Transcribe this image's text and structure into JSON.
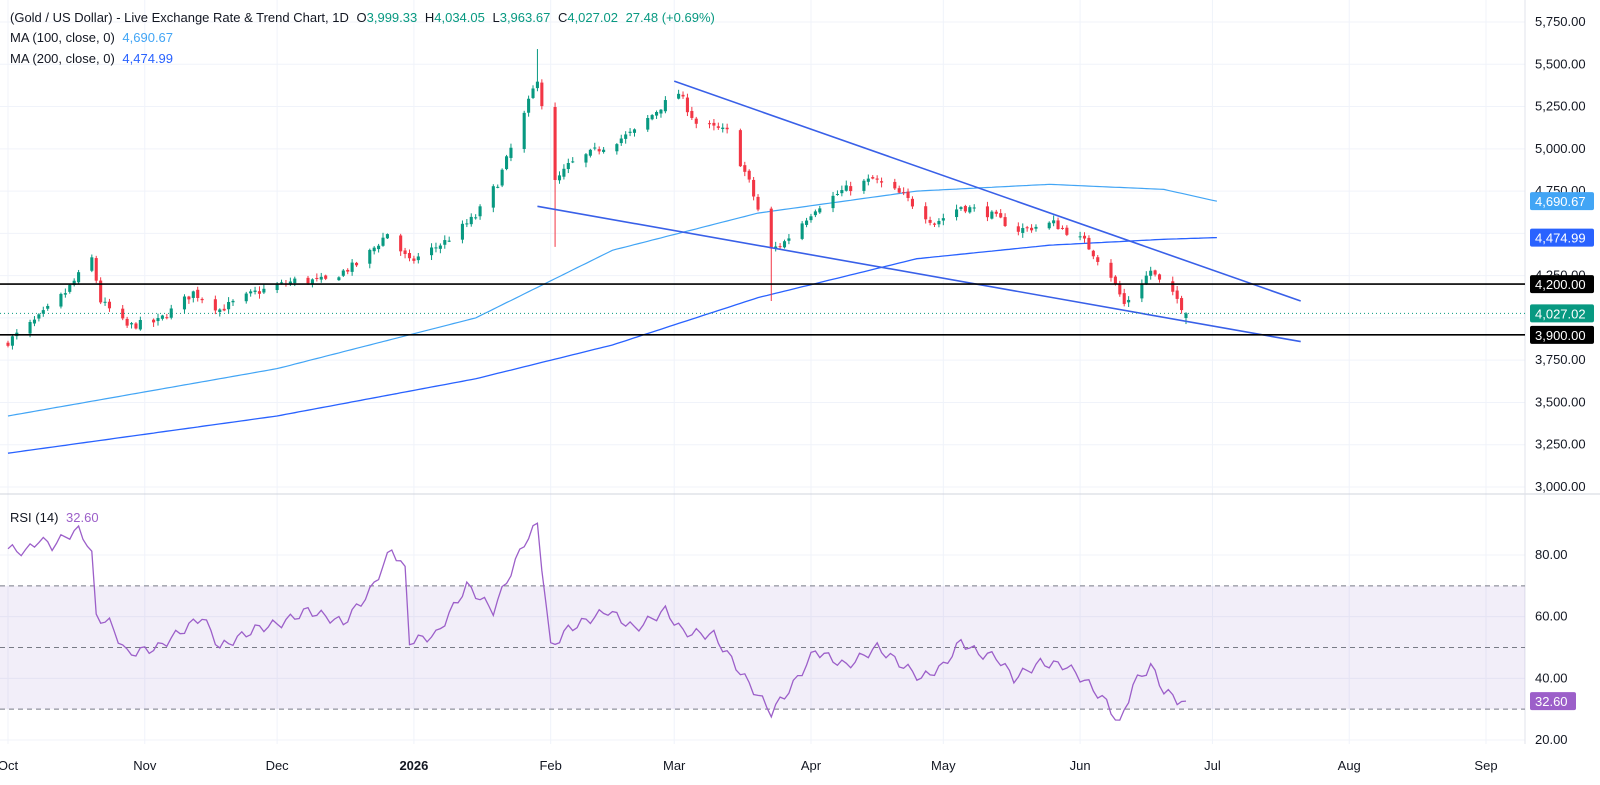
{
  "header": {
    "title": "(Gold / US Dollar) - Live Exchange Rate & Trend Chart, 1D",
    "o_label": "O",
    "o_value": "3,999.33",
    "h_label": "H",
    "h_value": "4,034.05",
    "l_label": "L",
    "l_value": "3,963.67",
    "c_label": "C",
    "c_value": "4,027.02",
    "change": "27.48 (+0.69%)"
  },
  "indicators": {
    "ma100_label": "MA (100, close, 0)",
    "ma100_value": "4,690.67",
    "ma200_label": "MA (200, close, 0)",
    "ma200_value": "4,474.99",
    "rsi_label": "RSI (14)",
    "rsi_value": "32.60"
  },
  "colors": {
    "up": "#089981",
    "down": "#f23645",
    "ma100": "#42a5f5",
    "ma200": "#2962ff",
    "trendline": "#3960e8",
    "rsi": "#9c5fc9",
    "rsi_band": "#7e57c2"
  },
  "chart_data": [
    {
      "type": "candlestick",
      "title": "(Gold / US Dollar) - Live Exchange Rate & Trend Chart, 1D",
      "ylim": [
        3000,
        5750
      ],
      "y_ticks": [
        "5,750.00",
        "5,500.00",
        "5,250.00",
        "5,000.00",
        "4,750.00",
        "4,250.00",
        "3,750.00",
        "3,500.00",
        "3,250.00",
        "3,000.00"
      ],
      "x_ticks": [
        "Oct",
        "Nov",
        "Dec",
        "2026",
        "Feb",
        "Mar",
        "Apr",
        "May",
        "Jun",
        "Jul",
        "Aug",
        "Sep"
      ],
      "waypoints": [
        [
          "2025-10-01",
          3860
        ],
        [
          "2025-10-08",
          4000
        ],
        [
          "2025-10-14",
          4150
        ],
        [
          "2025-10-20",
          4350
        ],
        [
          "2025-10-22",
          4100
        ],
        [
          "2025-10-28",
          3950
        ],
        [
          "2025-11-04",
          3980
        ],
        [
          "2025-11-12",
          4150
        ],
        [
          "2025-11-18",
          4050
        ],
        [
          "2025-11-26",
          4150
        ],
        [
          "2025-12-05",
          4220
        ],
        [
          "2025-12-12",
          4220
        ],
        [
          "2025-12-20",
          4330
        ],
        [
          "2025-12-26",
          4500
        ],
        [
          "2025-12-31",
          4330
        ],
        [
          "2026-01-08",
          4450
        ],
        [
          "2026-01-15",
          4600
        ],
        [
          "2026-01-20",
          4800
        ],
        [
          "2026-01-26",
          5200
        ],
        [
          "2026-01-29",
          5420
        ],
        [
          "2026-02-02",
          4800
        ],
        [
          "2026-02-05",
          4900
        ],
        [
          "2026-02-12",
          5000
        ],
        [
          "2026-02-20",
          5100
        ],
        [
          "2026-02-26",
          5250
        ],
        [
          "2026-03-02",
          5330
        ],
        [
          "2026-03-06",
          5150
        ],
        [
          "2026-03-13",
          5100
        ],
        [
          "2026-03-18",
          4800
        ],
        [
          "2026-03-23",
          4400
        ],
        [
          "2026-03-26",
          4450
        ],
        [
          "2026-04-02",
          4650
        ],
        [
          "2026-04-08",
          4750
        ],
        [
          "2026-04-15",
          4820
        ],
        [
          "2026-04-22",
          4720
        ],
        [
          "2026-04-29",
          4560
        ],
        [
          "2026-05-05",
          4660
        ],
        [
          "2026-05-11",
          4620
        ],
        [
          "2026-05-18",
          4520
        ],
        [
          "2026-05-26",
          4560
        ],
        [
          "2026-06-02",
          4450
        ],
        [
          "2026-06-08",
          4250
        ],
        [
          "2026-06-11",
          4080
        ],
        [
          "2026-06-14",
          4180
        ],
        [
          "2026-06-17",
          4280
        ],
        [
          "2026-06-20",
          4180
        ],
        [
          "2026-06-23",
          4110
        ],
        [
          "2026-06-25",
          4027
        ]
      ],
      "last": {
        "open": 3999.33,
        "high": 4034.05,
        "low": 3963.67,
        "close": 4027.02
      },
      "extremes": {
        "high": {
          "date": "2026-01-29",
          "value": 5590
        },
        "low": {
          "date": "2026-03-23",
          "value": 4100
        }
      },
      "ma100": {
        "name": "MA (100, close, 0)",
        "points": [
          [
            "2025-10-01",
            3420
          ],
          [
            "2025-12-01",
            3700
          ],
          [
            "2026-01-15",
            4000
          ],
          [
            "2026-02-15",
            4400
          ],
          [
            "2026-03-20",
            4620
          ],
          [
            "2026-04-25",
            4750
          ],
          [
            "2026-05-25",
            4790
          ],
          [
            "2026-06-20",
            4760
          ],
          [
            "2026-07-02",
            4690
          ]
        ]
      },
      "ma200": {
        "name": "MA (200, close, 0)",
        "points": [
          [
            "2025-10-01",
            3200
          ],
          [
            "2025-12-01",
            3420
          ],
          [
            "2026-01-15",
            3640
          ],
          [
            "2026-02-15",
            3840
          ],
          [
            "2026-03-20",
            4120
          ],
          [
            "2026-04-25",
            4350
          ],
          [
            "2026-05-25",
            4430
          ],
          [
            "2026-06-20",
            4465
          ],
          [
            "2026-07-02",
            4475
          ]
        ]
      },
      "trendlines": [
        {
          "from": [
            "2026-03-01",
            5400
          ],
          "to": [
            "2026-07-21",
            4100
          ]
        },
        {
          "from": [
            "2026-01-29",
            4660
          ],
          "to": [
            "2026-07-21",
            3860
          ]
        }
      ],
      "levels": [
        4200,
        3900
      ],
      "price_tags": [
        {
          "value": 4690.67,
          "text": "4,690.67"
        },
        {
          "value": 4474.99,
          "text": "4,474.99"
        },
        {
          "value": 4200,
          "text": "4,200.00"
        },
        {
          "value": 4027.02,
          "text": "4,027.02"
        },
        {
          "value": 3900,
          "text": "3,900.00"
        }
      ]
    },
    {
      "type": "line",
      "title": "RSI (14)",
      "ylim": [
        20,
        90
      ],
      "y_ticks": [
        "80.00",
        "60.00",
        "40.00",
        "20.00"
      ],
      "band": [
        30,
        70
      ],
      "midline": 50,
      "last_value": 32.6,
      "last_text": "32.60",
      "waypoints": [
        [
          "2025-10-01",
          82
        ],
        [
          "2025-10-05",
          81
        ],
        [
          "2025-10-08",
          85
        ],
        [
          "2025-10-11",
          83
        ],
        [
          "2025-10-14",
          86
        ],
        [
          "2025-10-17",
          88
        ],
        [
          "2025-10-19",
          84
        ],
        [
          "2025-10-20",
          80
        ],
        [
          "2025-10-21",
          60
        ],
        [
          "2025-10-24",
          58
        ],
        [
          "2025-10-28",
          48
        ],
        [
          "2025-11-04",
          50
        ],
        [
          "2025-11-10",
          56
        ],
        [
          "2025-11-14",
          60
        ],
        [
          "2025-11-18",
          50
        ],
        [
          "2025-11-26",
          56
        ],
        [
          "2025-12-02",
          58
        ],
        [
          "2025-12-08",
          62
        ],
        [
          "2025-12-16",
          58
        ],
        [
          "2025-12-22",
          68
        ],
        [
          "2025-12-27",
          82
        ],
        [
          "2025-12-30",
          75
        ],
        [
          "2025-12-31",
          52
        ],
        [
          "2026-01-06",
          54
        ],
        [
          "2026-01-13",
          70
        ],
        [
          "2026-01-19",
          62
        ],
        [
          "2026-01-26",
          84
        ],
        [
          "2026-01-29",
          90
        ],
        [
          "2026-02-01",
          50
        ],
        [
          "2026-02-05",
          56
        ],
        [
          "2026-02-14",
          62
        ],
        [
          "2026-02-20",
          56
        ],
        [
          "2026-02-27",
          62
        ],
        [
          "2026-03-03",
          55
        ],
        [
          "2026-03-10",
          54
        ],
        [
          "2026-03-17",
          40
        ],
        [
          "2026-03-23",
          29
        ],
        [
          "2026-03-28",
          38
        ],
        [
          "2026-04-02",
          49
        ],
        [
          "2026-04-09",
          44
        ],
        [
          "2026-04-16",
          50
        ],
        [
          "2026-04-21",
          45
        ],
        [
          "2026-04-26",
          40
        ],
        [
          "2026-05-01",
          44
        ],
        [
          "2026-05-05",
          52
        ],
        [
          "2026-05-09",
          48
        ],
        [
          "2026-05-13",
          47
        ],
        [
          "2026-05-17",
          40
        ],
        [
          "2026-05-23",
          45
        ],
        [
          "2026-05-29",
          44
        ],
        [
          "2026-06-03",
          38
        ],
        [
          "2026-06-07",
          32
        ],
        [
          "2026-06-10",
          25
        ],
        [
          "2026-06-13",
          38
        ],
        [
          "2026-06-17",
          44
        ],
        [
          "2026-06-20",
          36
        ],
        [
          "2026-06-23",
          33
        ],
        [
          "2026-06-25",
          32.6
        ]
      ]
    }
  ]
}
